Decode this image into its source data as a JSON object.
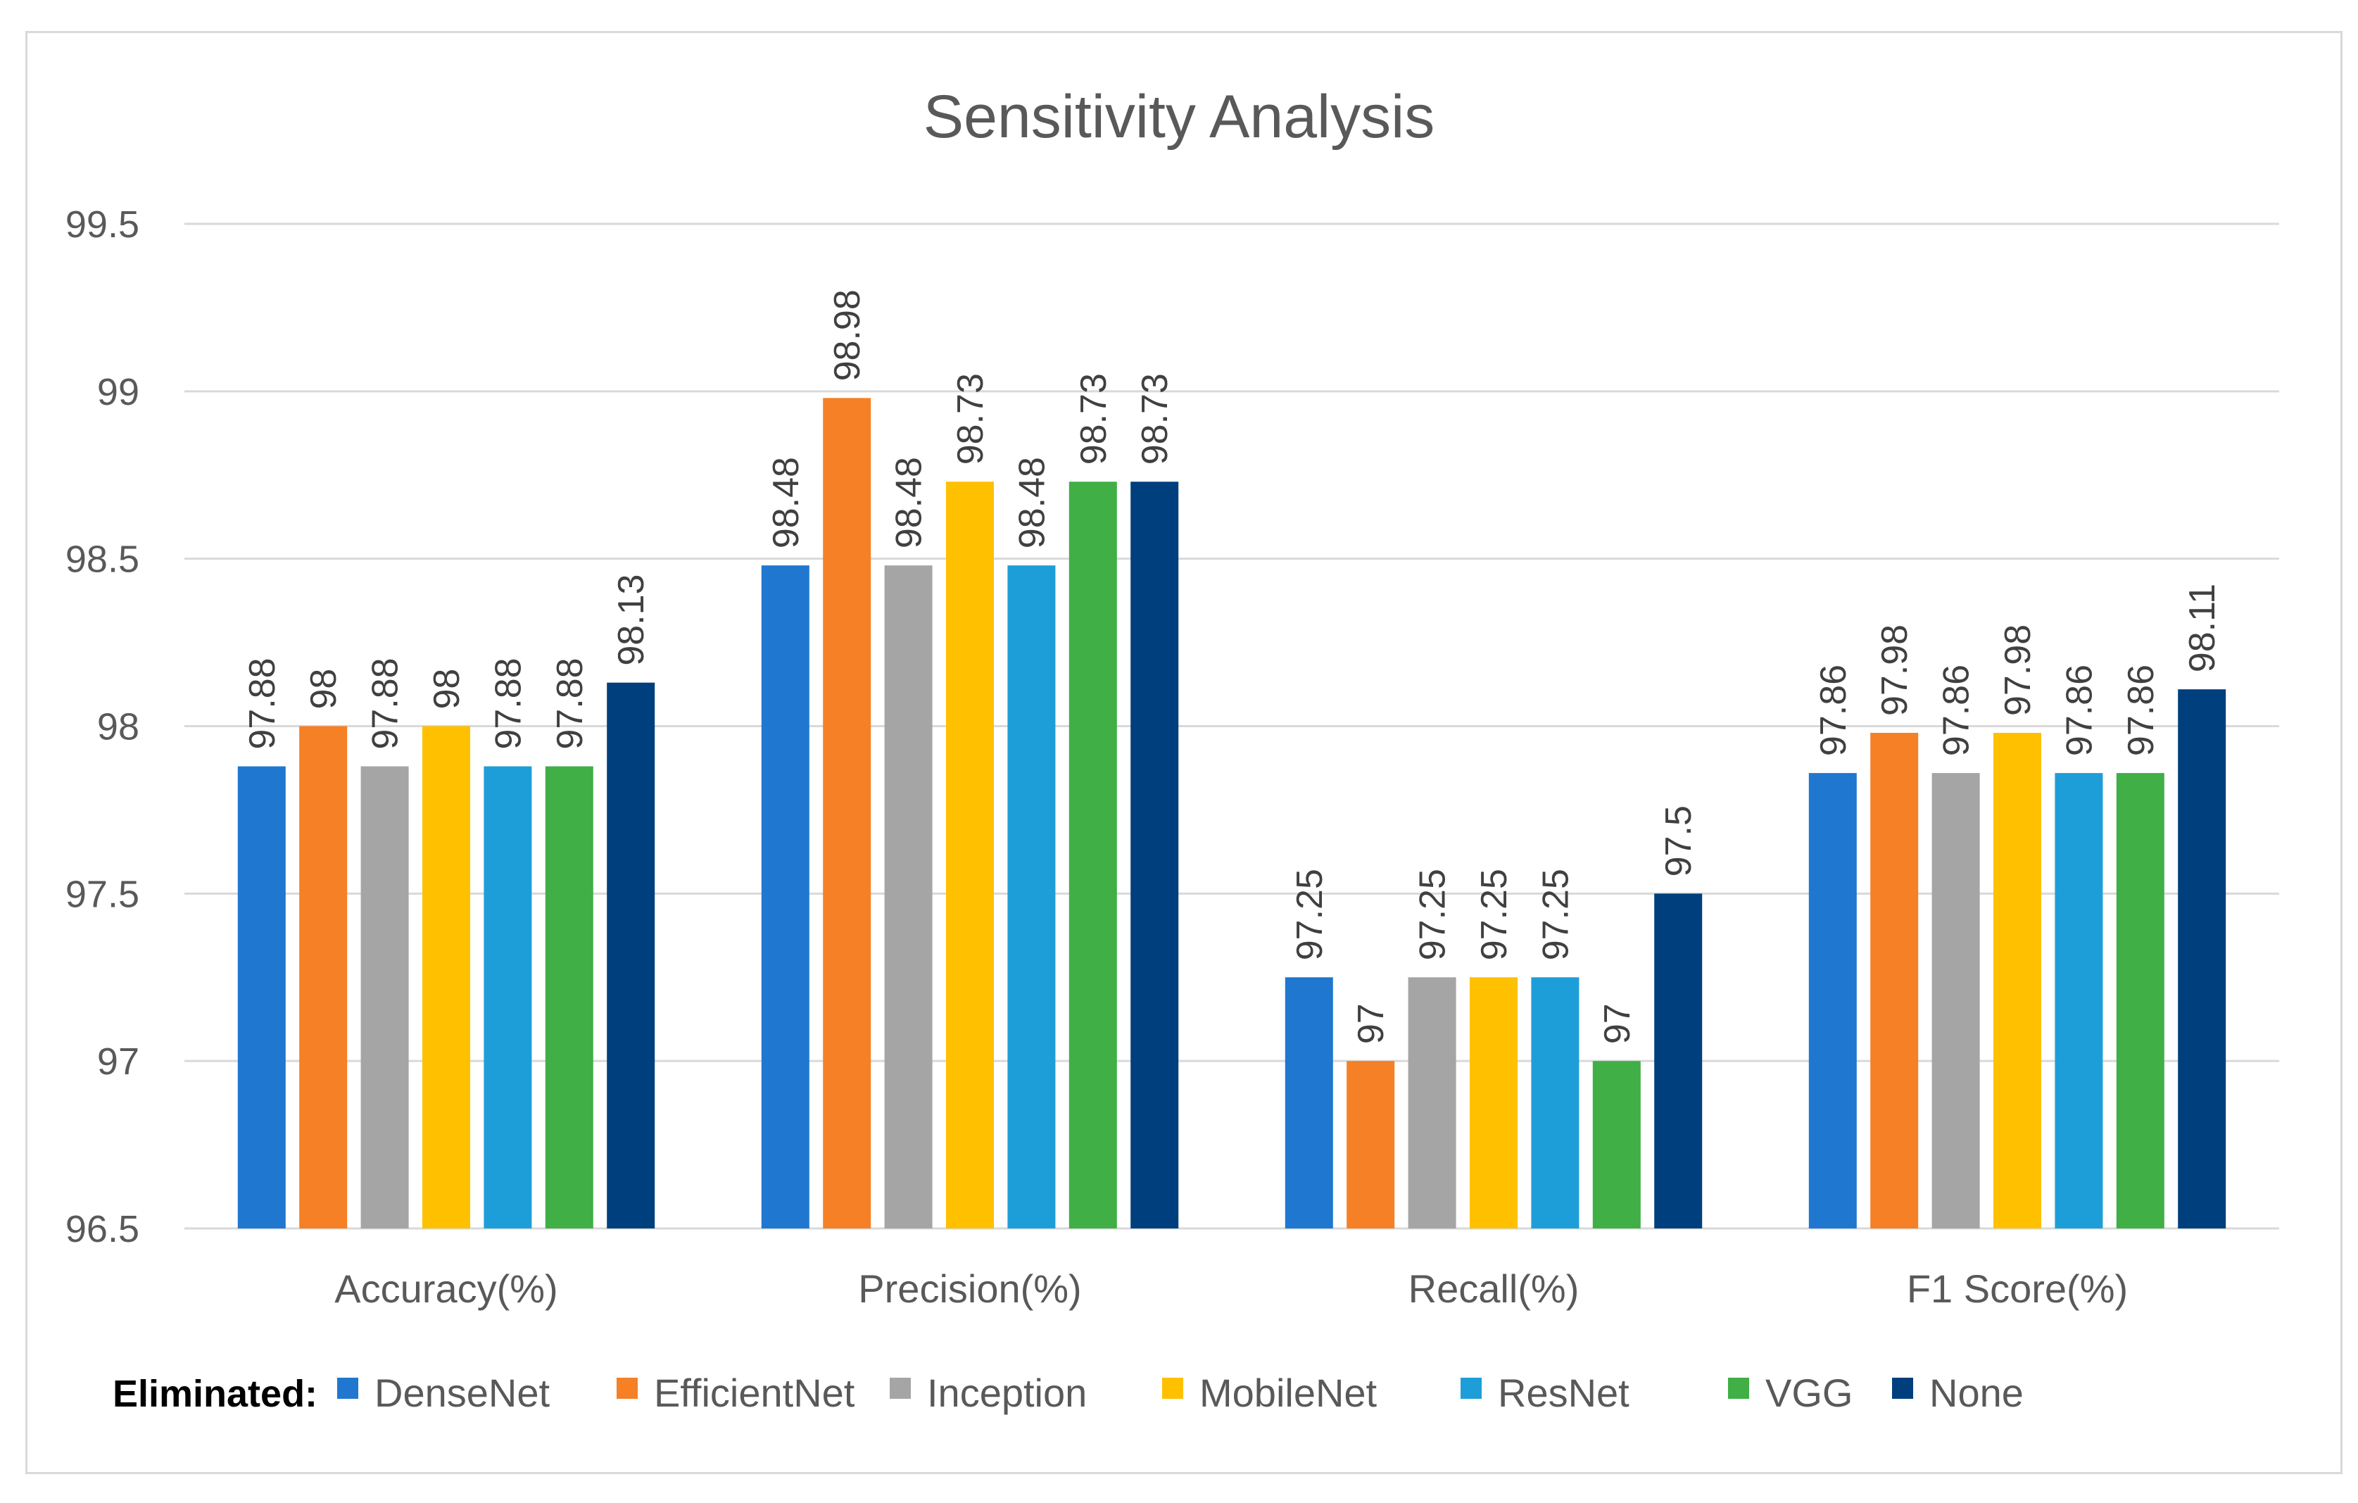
{
  "chart_data": {
    "type": "bar",
    "title": "Sensitivity Analysis",
    "xlabel": "",
    "ylabel": "",
    "ylim": [
      96.5,
      99.5
    ],
    "yticks": [
      "96.5",
      "97",
      "97.5",
      "98",
      "98.5",
      "99",
      "99.5"
    ],
    "grid": true,
    "legend_position": "bottom",
    "legend_title": "Eliminated:",
    "categories": [
      "Accuracy(%)",
      "Precision(%)",
      "Recall(%)",
      "F1 Score(%)"
    ],
    "series": [
      {
        "name": "DenseNet",
        "color": "#1F77D0",
        "values": [
          97.88,
          98.48,
          97.25,
          97.86
        ],
        "labels": [
          "97.88",
          "98.48",
          "97.25",
          "97.86"
        ]
      },
      {
        "name": "EfficientNet",
        "color": "#F58026",
        "values": [
          98.0,
          98.98,
          97.0,
          97.98
        ],
        "labels": [
          "98",
          "98.98",
          "97",
          "97.98"
        ]
      },
      {
        "name": "Inception",
        "color": "#A5A5A5",
        "values": [
          97.88,
          98.48,
          97.25,
          97.86
        ],
        "labels": [
          "97.88",
          "98.48",
          "97.25",
          "97.86"
        ]
      },
      {
        "name": "MobileNet",
        "color": "#FFC000",
        "values": [
          98.0,
          98.73,
          97.25,
          97.98
        ],
        "labels": [
          "98",
          "98.73",
          "97.25",
          "97.98"
        ]
      },
      {
        "name": "ResNet",
        "color": "#1E9ED8",
        "values": [
          97.88,
          98.48,
          97.25,
          97.86
        ],
        "labels": [
          "97.88",
          "98.48",
          "97.25",
          "97.86"
        ]
      },
      {
        "name": "VGG",
        "color": "#3FAF46",
        "values": [
          97.88,
          98.73,
          97.0,
          97.86
        ],
        "labels": [
          "97.88",
          "98.73",
          "97",
          "97.86"
        ]
      },
      {
        "name": "None",
        "color": "#003F7D",
        "values": [
          98.13,
          98.73,
          97.5,
          98.11
        ],
        "labels": [
          "98.13",
          "98.73",
          "97.5",
          "98.11"
        ]
      }
    ]
  }
}
